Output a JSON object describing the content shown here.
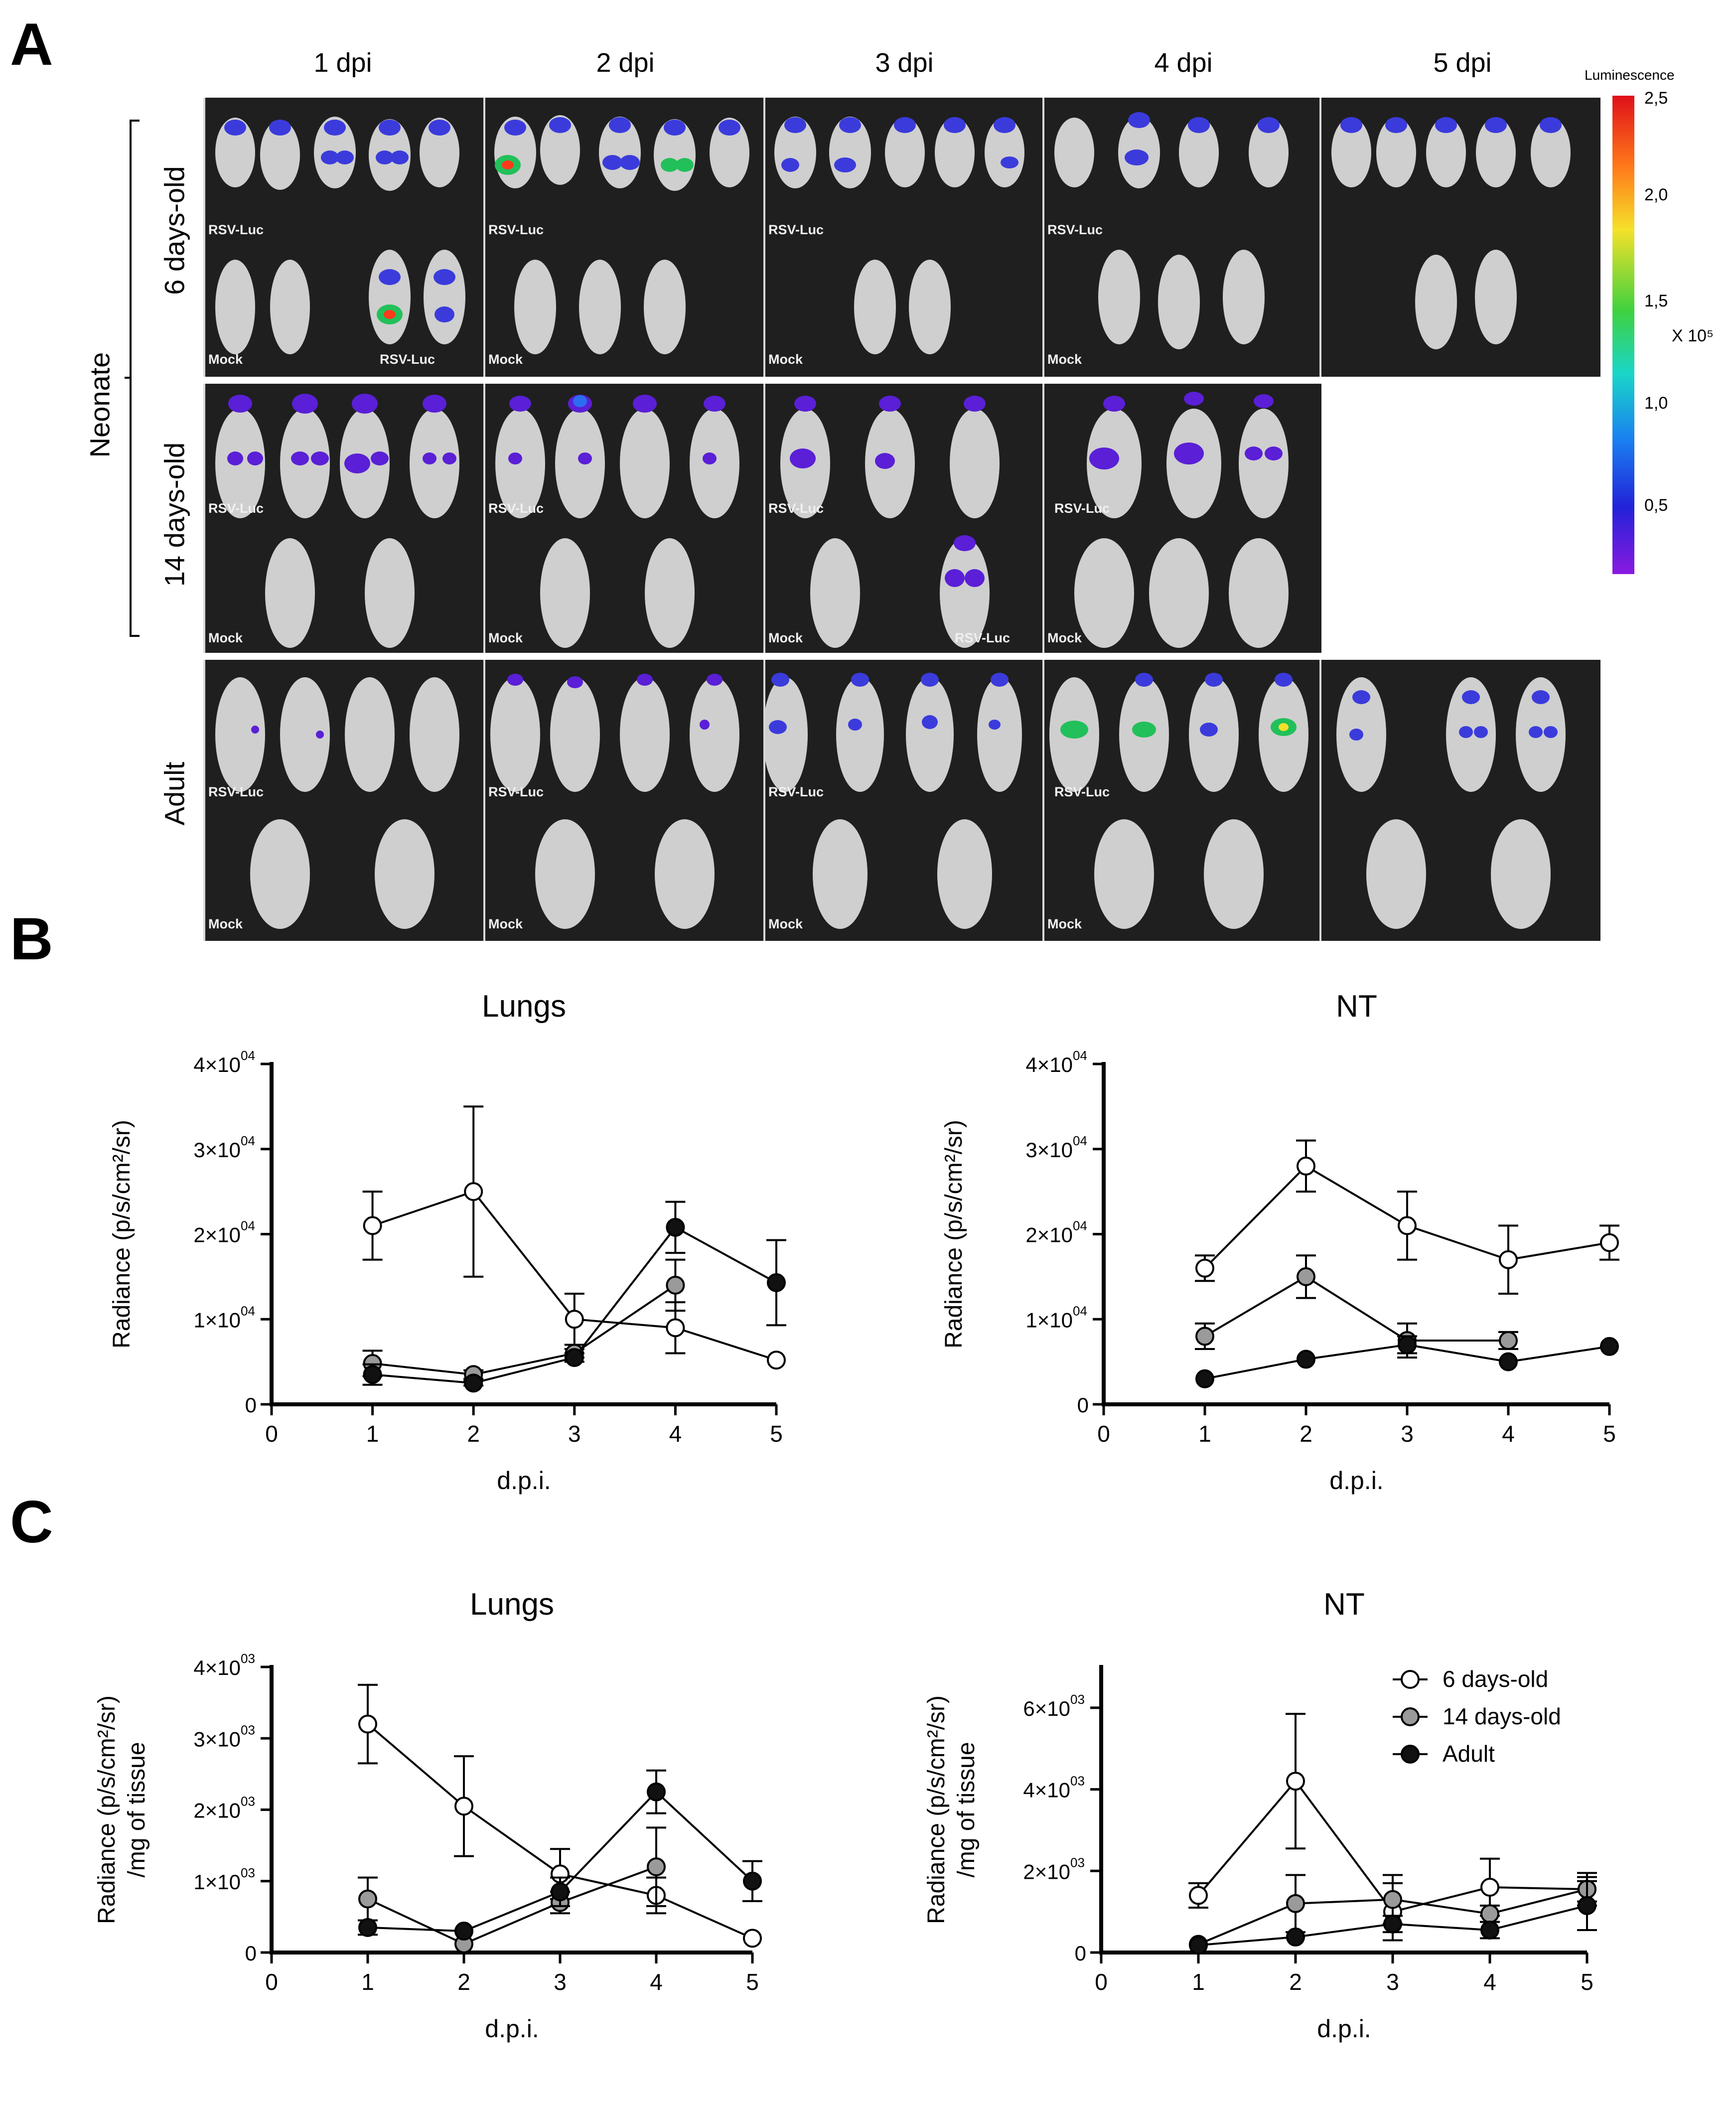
{
  "panel_labels": {
    "a": "A",
    "b": "B",
    "c": "C"
  },
  "imaging": {
    "columns": [
      "1 dpi",
      "2 dpi",
      "3 dpi",
      "4 dpi",
      "5 dpi"
    ],
    "group_neonate": "Neonate",
    "rows": [
      "6 days-old",
      "14 days-old",
      "Adult"
    ],
    "tag_infected": "RSV-Luc",
    "tag_mock": "Mock",
    "colorbar": {
      "title": "Luminescence",
      "ticks": [
        "2,5",
        "2,0",
        "1,5",
        "1,0",
        "0,5"
      ],
      "unit": "X 10⁵"
    }
  },
  "legend": [
    "6 days-old",
    "14 days-old",
    "Adult"
  ],
  "colors": {
    "open": "#ffffff",
    "grey": "#9a9a9a",
    "black": "#111111",
    "axis": "#000000"
  },
  "chart_data": [
    {
      "id": "B-lungs",
      "type": "line",
      "title": "Lungs",
      "xlabel": "d.p.i.",
      "ylabel": [
        "Radiance (p/s/cm²/sr)"
      ],
      "xlim": [
        0,
        5
      ],
      "ylim": [
        0,
        40000
      ],
      "xticks": [
        "0",
        "1",
        "2",
        "3",
        "4",
        "5"
      ],
      "yticks": [
        {
          "v": 0,
          "m": "0",
          "e": ""
        },
        {
          "v": 10000,
          "m": "1×10",
          "e": "04"
        },
        {
          "v": 20000,
          "m": "2×10",
          "e": "04"
        },
        {
          "v": 30000,
          "m": "3×10",
          "e": "04"
        },
        {
          "v": 40000,
          "m": "4×10",
          "e": "04"
        }
      ],
      "series": [
        {
          "name": "6 days-old",
          "marker": "open",
          "x": [
            1,
            2,
            3,
            4,
            5
          ],
          "y": [
            21000,
            25000,
            10000,
            9000,
            5200
          ],
          "err": [
            4000,
            10000,
            3000,
            3000,
            0
          ]
        },
        {
          "name": "14 days-old",
          "marker": "grey",
          "x": [
            1,
            2,
            3,
            4
          ],
          "y": [
            4800,
            3500,
            6000,
            14000
          ],
          "err": [
            1500,
            500,
            500,
            3000
          ]
        },
        {
          "name": "Adult",
          "marker": "black",
          "x": [
            1,
            2,
            3,
            4,
            5
          ],
          "y": [
            3500,
            2500,
            5500,
            20800,
            14300
          ],
          "err": [
            1200,
            300,
            500,
            3000,
            5000
          ]
        }
      ]
    },
    {
      "id": "B-nt",
      "type": "line",
      "title": "NT",
      "xlabel": "d.p.i.",
      "ylabel": [
        "Radiance (p/s/cm²/sr)"
      ],
      "xlim": [
        0,
        5
      ],
      "ylim": [
        0,
        40000
      ],
      "xticks": [
        "0",
        "1",
        "2",
        "3",
        "4",
        "5"
      ],
      "yticks": [
        {
          "v": 0,
          "m": "0",
          "e": ""
        },
        {
          "v": 10000,
          "m": "1×10",
          "e": "04"
        },
        {
          "v": 20000,
          "m": "2×10",
          "e": "04"
        },
        {
          "v": 30000,
          "m": "3×10",
          "e": "04"
        },
        {
          "v": 40000,
          "m": "4×10",
          "e": "04"
        }
      ],
      "series": [
        {
          "name": "6 days-old",
          "marker": "open",
          "x": [
            1,
            2,
            3,
            4,
            5
          ],
          "y": [
            16000,
            28000,
            21000,
            17000,
            19000
          ],
          "err": [
            1500,
            3000,
            4000,
            4000,
            2000
          ]
        },
        {
          "name": "14 days-old",
          "marker": "grey",
          "x": [
            1,
            2,
            3,
            4
          ],
          "y": [
            8000,
            15000,
            7500,
            7500
          ],
          "err": [
            1500,
            2500,
            2000,
            1000
          ]
        },
        {
          "name": "Adult",
          "marker": "black",
          "x": [
            1,
            2,
            3,
            4,
            5
          ],
          "y": [
            3000,
            5300,
            7000,
            5000,
            6800
          ],
          "err": [
            0,
            0,
            1000,
            0,
            0
          ]
        }
      ]
    },
    {
      "id": "C-lungs",
      "type": "line",
      "title": "Lungs",
      "xlabel": "d.p.i.",
      "ylabel": [
        "Radiance (p/s/cm²/sr)",
        "/mg of tissue"
      ],
      "xlim": [
        0,
        5
      ],
      "ylim": [
        0,
        4000
      ],
      "xticks": [
        "0",
        "1",
        "2",
        "3",
        "4",
        "5"
      ],
      "yticks": [
        {
          "v": 0,
          "m": "0",
          "e": ""
        },
        {
          "v": 1000,
          "m": "1×10",
          "e": "03"
        },
        {
          "v": 2000,
          "m": "2×10",
          "e": "03"
        },
        {
          "v": 3000,
          "m": "3×10",
          "e": "03"
        },
        {
          "v": 4000,
          "m": "4×10",
          "e": "03"
        }
      ],
      "series": [
        {
          "name": "6 days-old",
          "marker": "open",
          "x": [
            1,
            2,
            3,
            4,
            5
          ],
          "y": [
            3200,
            2050,
            1100,
            800,
            200
          ],
          "err": [
            550,
            700,
            350,
            250,
            0
          ]
        },
        {
          "name": "14 days-old",
          "marker": "grey",
          "x": [
            1,
            2,
            3,
            4
          ],
          "y": [
            750,
            120,
            700,
            1200
          ],
          "err": [
            300,
            0,
            150,
            550
          ]
        },
        {
          "name": "Adult",
          "marker": "black",
          "x": [
            1,
            2,
            3,
            4,
            5
          ],
          "y": [
            350,
            300,
            850,
            2250,
            1000
          ],
          "err": [
            100,
            0,
            200,
            300,
            280
          ]
        }
      ]
    },
    {
      "id": "C-nt",
      "type": "line",
      "title": "NT",
      "xlabel": "d.p.i.",
      "ylabel": [
        "Radiance (p/s/cm²/sr)",
        "/mg of tissue"
      ],
      "xlim": [
        0,
        5
      ],
      "ylim": [
        0,
        7000
      ],
      "xticks": [
        "0",
        "1",
        "2",
        "3",
        "4",
        "5"
      ],
      "yticks": [
        {
          "v": 0,
          "m": "0",
          "e": ""
        },
        {
          "v": 2000,
          "m": "2×10",
          "e": "03"
        },
        {
          "v": 4000,
          "m": "4×10",
          "e": "03"
        },
        {
          "v": 6000,
          "m": "6×10",
          "e": "03"
        }
      ],
      "series": [
        {
          "name": "6 days-old",
          "marker": "open",
          "x": [
            1,
            2,
            3,
            4,
            5
          ],
          "y": [
            1400,
            4200,
            1000,
            1600,
            1550
          ],
          "err": [
            300,
            1650,
            700,
            700,
            400
          ]
        },
        {
          "name": "14 days-old",
          "marker": "grey",
          "x": [
            1,
            2,
            3,
            4,
            5
          ],
          "y": [
            200,
            1200,
            1300,
            950,
            1550
          ],
          "err": [
            0,
            700,
            600,
            200,
            300
          ]
        },
        {
          "name": "Adult",
          "marker": "black",
          "x": [
            1,
            2,
            3,
            4,
            5
          ],
          "y": [
            180,
            380,
            700,
            550,
            1150
          ],
          "err": [
            0,
            0,
            200,
            200,
            600
          ]
        }
      ]
    }
  ]
}
